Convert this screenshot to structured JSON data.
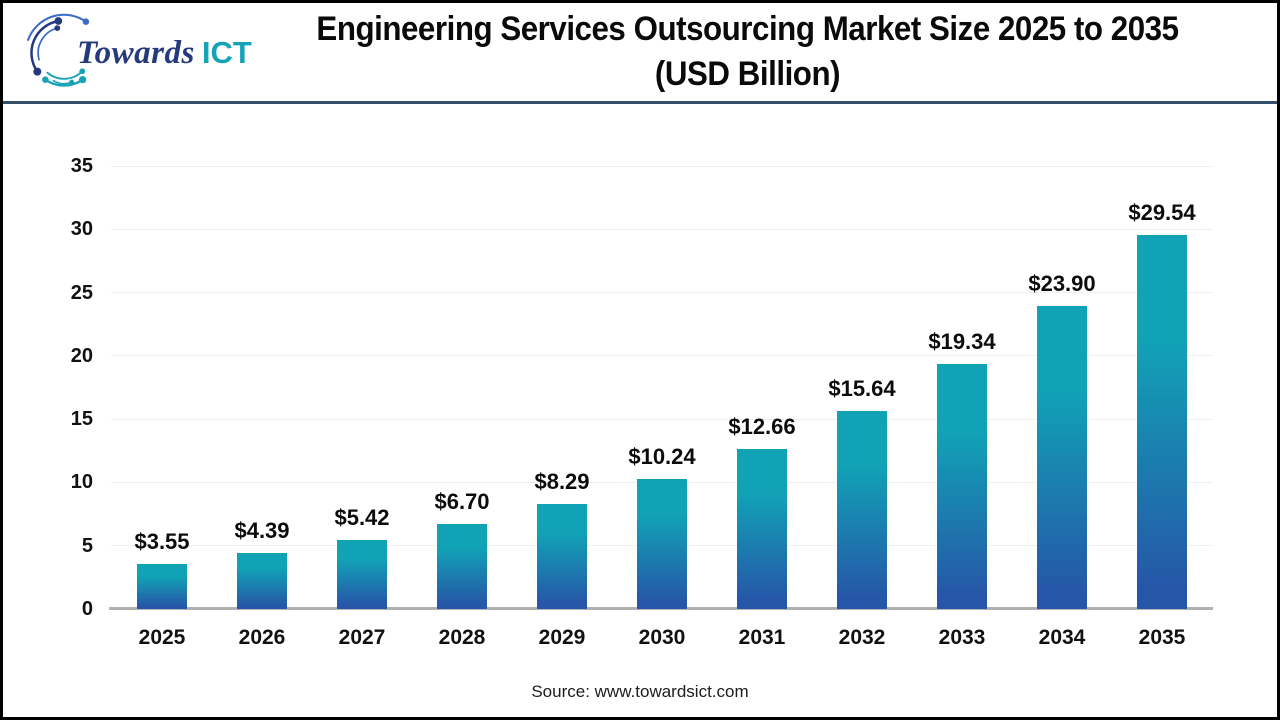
{
  "brand": {
    "logo_text_primary": "Towards",
    "logo_text_secondary": "ICT",
    "logo_navy_color": "#24397e",
    "logo_blue_color": "#3a6bc7",
    "logo_teal_color": "#16a3b8"
  },
  "header": {
    "title_line1": "Engineering Services Outsourcing Market Size 2025 to 2035",
    "title_line2": "(USD Billion)",
    "separator_color": "#33506b"
  },
  "footer": {
    "source": "Source: www.towardsict.com"
  },
  "chart_data": {
    "type": "bar",
    "title": "Engineering Services Outsourcing Market Size 2025 to 2035 (USD Billion)",
    "categories": [
      "2025",
      "2026",
      "2027",
      "2028",
      "2029",
      "2030",
      "2031",
      "2032",
      "2033",
      "2034",
      "2035"
    ],
    "values": [
      3.55,
      4.39,
      5.42,
      6.7,
      8.29,
      10.24,
      12.66,
      15.64,
      19.34,
      23.9,
      29.54
    ],
    "value_labels": [
      "$3.55",
      "$4.39",
      "$5.42",
      "$6.70",
      "$8.29",
      "$10.24",
      "$12.66",
      "$15.64",
      "$19.34",
      "$23.90",
      "$29.54"
    ],
    "xlabel": "",
    "ylabel": "",
    "ylim": [
      0,
      35
    ],
    "yticks": [
      0,
      5,
      10,
      15,
      20,
      25,
      30,
      35
    ],
    "grid": true,
    "legend": "none",
    "bar_gradient_top": "#11a2b6",
    "bar_gradient_bottom": "#2656a7",
    "baseline_color": "#b0b0b0",
    "gridline_color": "#efefef"
  }
}
